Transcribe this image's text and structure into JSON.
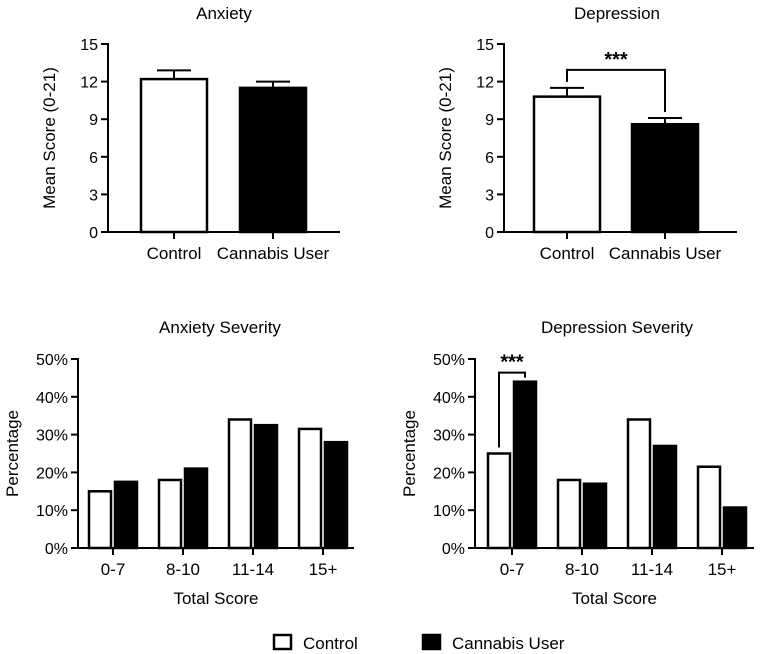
{
  "legend": {
    "items": [
      {
        "label": "Control",
        "style": "open"
      },
      {
        "label": "Cannabis User",
        "style": "filled"
      }
    ]
  },
  "chart_data": [
    {
      "type": "bar",
      "title": "Anxiety",
      "ylabel": "Mean Score (0-21)",
      "xlabel": "",
      "ylim": [
        0,
        15
      ],
      "yticks": [
        "0",
        "3",
        "6",
        "9",
        "12",
        "15"
      ],
      "categories": [
        "Control",
        "Cannabis User"
      ],
      "values": [
        12.2,
        11.5
      ],
      "errors": [
        0.7,
        0.5
      ],
      "styles": [
        "open",
        "filled"
      ],
      "significance": null
    },
    {
      "type": "bar",
      "title": "Depression",
      "ylabel": "Mean Score (0-21)",
      "xlabel": "",
      "ylim": [
        0,
        15
      ],
      "yticks": [
        "0",
        "3",
        "6",
        "9",
        "12",
        "15"
      ],
      "categories": [
        "Control",
        "Cannabis User"
      ],
      "values": [
        10.8,
        8.6
      ],
      "errors": [
        0.7,
        0.5
      ],
      "styles": [
        "open",
        "filled"
      ],
      "significance": {
        "label": "***",
        "between": [
          0,
          1
        ]
      }
    },
    {
      "type": "bar",
      "title": "Anxiety Severity",
      "ylabel": "Percentage",
      "xlabel": "Total Score",
      "ylim": [
        0,
        50
      ],
      "yticks": [
        "0%",
        "10%",
        "20%",
        "30%",
        "40%",
        "50%"
      ],
      "categories": [
        "0-7",
        "8-10",
        "11-14",
        "15+"
      ],
      "series": [
        {
          "name": "Control",
          "style": "open",
          "values": [
            15,
            18,
            34,
            31.5
          ]
        },
        {
          "name": "Cannabis User",
          "style": "filled",
          "values": [
            17.5,
            21,
            32.5,
            28
          ]
        }
      ],
      "significance": null
    },
    {
      "type": "bar",
      "title": "Depression Severity",
      "ylabel": "Percentage",
      "xlabel": "Total Score",
      "ylim": [
        0,
        50
      ],
      "yticks": [
        "0%",
        "10%",
        "20%",
        "30%",
        "40%",
        "50%"
      ],
      "categories": [
        "0-7",
        "8-10",
        "11-14",
        "15+"
      ],
      "series": [
        {
          "name": "Control",
          "style": "open",
          "values": [
            25,
            18,
            34,
            21.5
          ]
        },
        {
          "name": "Cannabis User",
          "style": "filled",
          "values": [
            44,
            17,
            27,
            10.7
          ]
        }
      ],
      "significance": {
        "label": "***",
        "category": 0
      }
    }
  ]
}
